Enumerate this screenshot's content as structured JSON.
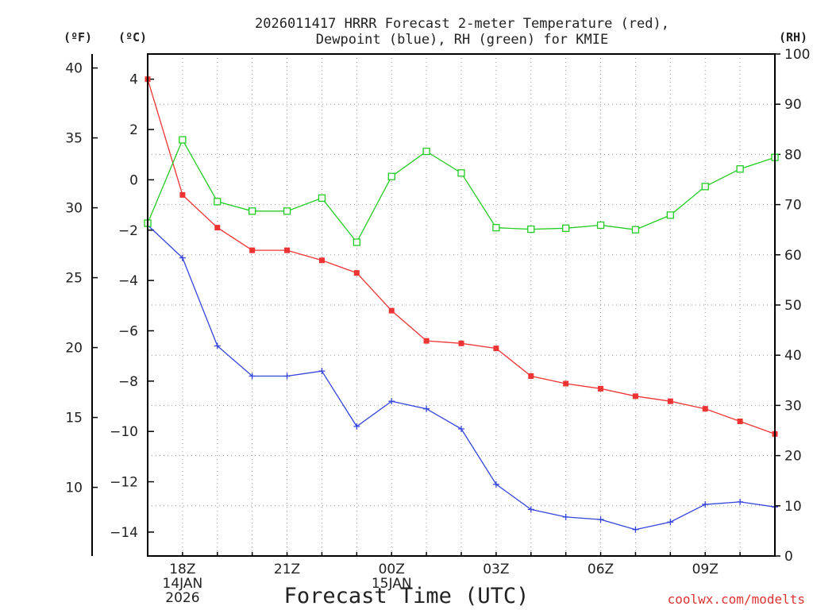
{
  "chart_data": {
    "type": "line",
    "title_line1": "2026011417 HRRR Forecast 2-meter Temperature (red),",
    "title_line2": "Dewpoint (blue), RH (green) for KMIE",
    "xlabel": "Forecast Time (UTC)",
    "unit_labels": {
      "fahrenheit": "(ºF)",
      "celsius": "(ºC)",
      "rh": "(RH)"
    },
    "credit": "coolwx.com/modelts",
    "x_hours": [
      0,
      1,
      2,
      3,
      4,
      5,
      6,
      7,
      8,
      9,
      10,
      11,
      12,
      13,
      14,
      15,
      16,
      17,
      18
    ],
    "x_ticks": [
      {
        "hour": 1,
        "lines": [
          "18Z",
          "14JAN",
          "2026"
        ]
      },
      {
        "hour": 4,
        "lines": [
          "21Z"
        ]
      },
      {
        "hour": 7,
        "lines": [
          "00Z",
          "15JAN"
        ]
      },
      {
        "hour": 10,
        "lines": [
          "03Z"
        ]
      },
      {
        "hour": 13,
        "lines": [
          "06Z"
        ]
      },
      {
        "hour": 16,
        "lines": [
          "09Z"
        ]
      }
    ],
    "ylim_celsius": [
      -14.95,
      5.0
    ],
    "ylim_rh": [
      0,
      100
    ],
    "yticks_celsius": [
      4,
      2,
      0,
      -2,
      -4,
      -6,
      -8,
      -10,
      -12,
      -14
    ],
    "yticks_fahrenheit": [
      40,
      35,
      30,
      25,
      20,
      15,
      10
    ],
    "yticks_rh": [
      100,
      90,
      80,
      70,
      60,
      50,
      40,
      30,
      20,
      10,
      0
    ],
    "series": [
      {
        "name": "Temperature",
        "units": "°C",
        "color": "#ee3333",
        "marker": "filled-square",
        "values": [
          4.0,
          -0.6,
          -1.9,
          -2.8,
          -2.8,
          -3.2,
          -3.7,
          -5.2,
          -6.4,
          -6.5,
          -6.7,
          -7.8,
          -8.1,
          -8.3,
          -8.6,
          -8.8,
          -9.1,
          -9.6,
          -10.1
        ]
      },
      {
        "name": "Dewpoint",
        "units": "°C",
        "color": "#3344dd",
        "marker": "plus",
        "values": [
          -1.8,
          -3.1,
          -6.6,
          -7.8,
          -7.8,
          -7.6,
          -9.8,
          -8.8,
          -9.1,
          -9.9,
          -12.1,
          -13.1,
          -13.4,
          -13.5,
          -13.9,
          -13.6,
          -12.9,
          -12.8,
          -13.0
        ]
      },
      {
        "name": "Relative Humidity",
        "units": "%",
        "color": "#22cc22",
        "marker": "open-square",
        "values": [
          66.3,
          82.9,
          70.6,
          68.7,
          68.7,
          71.3,
          62.5,
          75.6,
          80.6,
          76.3,
          65.4,
          65.1,
          65.3,
          65.9,
          65.0,
          67.9,
          73.6,
          77.1,
          79.4
        ]
      }
    ]
  }
}
